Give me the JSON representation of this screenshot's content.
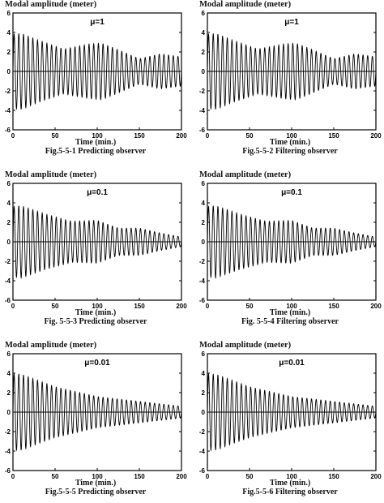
{
  "chart_data": [
    {
      "type": "line",
      "ylabel": "Modal amplitude (meter)",
      "xlabel": "Time (min.)",
      "caption": "Fig.5-5-1 Predicting observer",
      "annotation": "μ=1",
      "xlim": [
        0,
        200
      ],
      "ylim": [
        -6,
        6
      ],
      "xticks": [
        0,
        50,
        100,
        150,
        200
      ],
      "yticks": [
        6,
        4,
        2,
        0,
        -2,
        -4,
        -6
      ],
      "series": [
        {
          "envelope_t": [
            0,
            10,
            30,
            60,
            90,
            105,
            120,
            150,
            175,
            200
          ],
          "envelope_a": [
            3.8,
            3.9,
            3.2,
            2.3,
            2.8,
            2.9,
            2.4,
            1.3,
            1.8,
            1.5
          ],
          "cycles": 36
        }
      ]
    },
    {
      "type": "line",
      "ylabel": "Modal amplitude (meter)",
      "xlabel": "Time (min.)",
      "caption": "Fig.5-5-2 Filtering observer",
      "annotation": "μ=1",
      "xlim": [
        0,
        200
      ],
      "ylim": [
        -6,
        6
      ],
      "xticks": [
        0,
        50,
        100,
        150,
        200
      ],
      "yticks": [
        6,
        4,
        2,
        0,
        -2,
        -4,
        -6
      ],
      "series": [
        {
          "envelope_t": [
            0,
            10,
            30,
            60,
            90,
            105,
            120,
            150,
            175,
            200
          ],
          "envelope_a": [
            3.8,
            3.9,
            3.2,
            2.3,
            2.8,
            2.9,
            2.4,
            1.3,
            1.8,
            1.5
          ],
          "cycles": 36
        }
      ]
    },
    {
      "type": "line",
      "ylabel": "Modal amplitude (meter)",
      "xlabel": "Time (min.)",
      "caption": "Fig. 5-5-3 Predicting observer",
      "annotation": "μ=0.1",
      "xlim": [
        0,
        200
      ],
      "ylim": [
        -6,
        6
      ],
      "xticks": [
        0,
        50,
        100,
        150,
        200
      ],
      "yticks": [
        6,
        4,
        2,
        0,
        -2,
        -4,
        -6
      ],
      "series": [
        {
          "envelope_t": [
            0,
            10,
            40,
            70,
            100,
            125,
            150,
            175,
            200
          ],
          "envelope_a": [
            3.6,
            3.7,
            2.8,
            2.1,
            2.2,
            1.4,
            1.4,
            0.9,
            0.5
          ],
          "cycles": 36
        }
      ]
    },
    {
      "type": "line",
      "ylabel": "Modal amplitude (meter)",
      "xlabel": "Time (min.)",
      "caption": "Fig. 5-5-4 Filtering observer",
      "annotation": "μ=0.1",
      "xlim": [
        0,
        200
      ],
      "ylim": [
        -6,
        6
      ],
      "xticks": [
        0,
        50,
        100,
        150,
        200
      ],
      "yticks": [
        6,
        4,
        2,
        0,
        -2,
        -4,
        -6
      ],
      "series": [
        {
          "envelope_t": [
            0,
            10,
            40,
            70,
            100,
            125,
            150,
            175,
            200
          ],
          "envelope_a": [
            3.6,
            3.7,
            2.8,
            2.1,
            2.2,
            1.4,
            1.4,
            0.9,
            0.5
          ],
          "cycles": 36
        }
      ]
    },
    {
      "type": "line",
      "ylabel": "Modal amplitude (meter)",
      "xlabel": "Time (min.)",
      "caption": "Fig.5-5-5 Predicting observer",
      "annotation": "μ=0.01",
      "xlim": [
        0,
        200
      ],
      "ylim": [
        -6,
        6
      ],
      "xticks": [
        0,
        50,
        100,
        150,
        200
      ],
      "yticks": [
        6,
        4,
        2,
        0,
        -2,
        -4,
        -6
      ],
      "series": [
        {
          "envelope_t": [
            0,
            10,
            50,
            100,
            150,
            200
          ],
          "envelope_a": [
            3.9,
            3.9,
            2.6,
            1.6,
            1.1,
            0.6
          ],
          "cycles": 36
        }
      ]
    },
    {
      "type": "line",
      "ylabel": "Modal amplitude (meter)",
      "xlabel": "Time (min.)",
      "caption": "Fig.5-5-6 Filtering observer",
      "annotation": "μ=0.01",
      "xlim": [
        0,
        200
      ],
      "ylim": [
        -6,
        6
      ],
      "xticks": [
        0,
        50,
        100,
        150,
        200
      ],
      "yticks": [
        6,
        4,
        2,
        0,
        -2,
        -4,
        -6
      ],
      "series": [
        {
          "envelope_t": [
            0,
            10,
            50,
            100,
            150,
            200
          ],
          "envelope_a": [
            3.9,
            3.9,
            2.6,
            1.6,
            1.1,
            0.6
          ],
          "cycles": 36
        }
      ]
    }
  ]
}
